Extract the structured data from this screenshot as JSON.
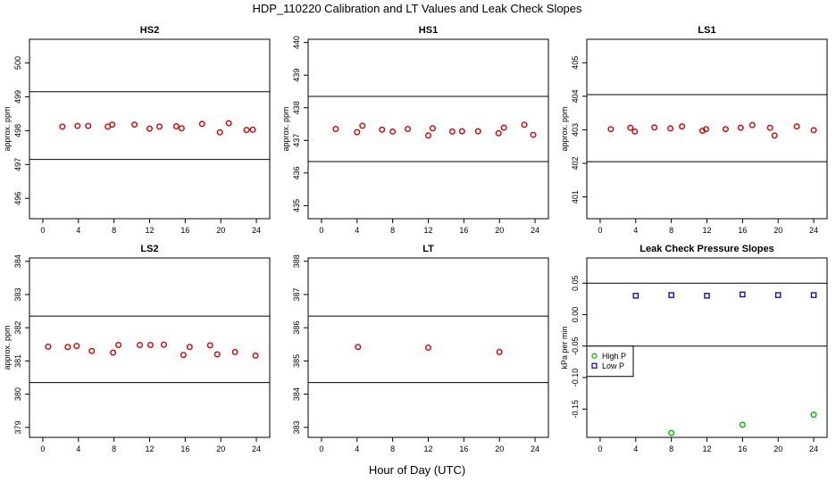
{
  "figure": {
    "title": "HDP_110220  Calibration and LT Values and Leak Check Slopes",
    "xlabel": "Hour of Day (UTC)"
  },
  "chart_data": [
    {
      "type": "scatter",
      "title": "HS2",
      "ylabel": "approx. ppm",
      "xlim": [
        -1.5,
        25.5
      ],
      "ylim": [
        495.4,
        500.7
      ],
      "xticks": [
        0,
        4,
        8,
        12,
        16,
        20,
        24
      ],
      "yticks": [
        496,
        497,
        498,
        499,
        500
      ],
      "hlines": [
        499.15,
        497.15
      ],
      "series": [
        {
          "color": "#dd0000",
          "marker": "circle",
          "x": [
            2.2,
            3.9,
            5.1,
            7.3,
            7.8,
            10.3,
            12.0,
            13.1,
            15.0,
            15.6,
            17.9,
            19.9,
            20.9,
            22.9,
            23.6
          ],
          "y": [
            498.12,
            498.14,
            498.14,
            498.12,
            498.18,
            498.18,
            498.06,
            498.12,
            498.13,
            498.07,
            498.2,
            497.95,
            498.22,
            498.02,
            498.03
          ]
        }
      ]
    },
    {
      "type": "scatter",
      "title": "HS1",
      "ylabel": "approx. ppm",
      "xlim": [
        -1.5,
        25.5
      ],
      "ylim": [
        434.6,
        440.1
      ],
      "xticks": [
        0,
        4,
        8,
        12,
        16,
        20,
        24
      ],
      "yticks": [
        435,
        436,
        437,
        438,
        439,
        440
      ],
      "hlines": [
        438.35,
        436.35
      ],
      "series": [
        {
          "color": "#dd0000",
          "marker": "circle",
          "x": [
            1.6,
            4.0,
            4.6,
            6.8,
            8.0,
            9.7,
            12.0,
            12.5,
            14.7,
            15.8,
            17.6,
            19.9,
            20.5,
            22.8,
            23.8
          ],
          "y": [
            437.35,
            437.25,
            437.45,
            437.33,
            437.27,
            437.35,
            437.15,
            437.37,
            437.27,
            437.28,
            437.28,
            437.22,
            437.39,
            437.48,
            437.17
          ]
        }
      ]
    },
    {
      "type": "scatter",
      "title": "LS1",
      "ylabel": "approx. ppm",
      "xlim": [
        -1.5,
        25.5
      ],
      "ylim": [
        400.35,
        405.7
      ],
      "xticks": [
        0,
        4,
        8,
        12,
        16,
        20,
        24
      ],
      "yticks": [
        401,
        402,
        403,
        404,
        405
      ],
      "hlines": [
        404.05,
        402.05
      ],
      "series": [
        {
          "color": "#dd0000",
          "marker": "circle",
          "x": [
            1.2,
            3.4,
            3.9,
            6.1,
            7.9,
            9.2,
            11.5,
            11.9,
            14.1,
            15.8,
            17.1,
            19.1,
            19.6,
            22.1,
            24.0
          ],
          "y": [
            403.02,
            403.06,
            402.95,
            403.07,
            403.04,
            403.1,
            402.97,
            403.02,
            403.02,
            403.06,
            403.14,
            403.06,
            402.83,
            403.1,
            402.99
          ]
        }
      ]
    },
    {
      "type": "scatter",
      "title": "LS2",
      "ylabel": "approx. ppm",
      "xlim": [
        -1.5,
        25.5
      ],
      "ylim": [
        378.7,
        384.1
      ],
      "xticks": [
        0,
        4,
        8,
        12,
        16,
        20,
        24
      ],
      "yticks": [
        379,
        380,
        381,
        382,
        383,
        384
      ],
      "hlines": [
        382.35,
        380.35
      ],
      "series": [
        {
          "color": "#dd0000",
          "marker": "circle",
          "x": [
            0.6,
            2.8,
            3.8,
            5.5,
            7.9,
            8.5,
            10.9,
            12.1,
            13.6,
            15.8,
            16.5,
            18.8,
            19.6,
            21.6,
            23.9
          ],
          "y": [
            381.43,
            381.42,
            381.45,
            381.3,
            381.25,
            381.48,
            381.48,
            381.48,
            381.49,
            381.18,
            381.42,
            381.47,
            381.2,
            381.27,
            381.16
          ]
        }
      ]
    },
    {
      "type": "scatter",
      "title": "LT",
      "ylabel": "",
      "xlim": [
        -1.5,
        25.5
      ],
      "ylim": [
        382.7,
        388.1
      ],
      "xticks": [
        0,
        4,
        8,
        12,
        16,
        20,
        24
      ],
      "yticks": [
        383,
        384,
        385,
        386,
        387,
        388
      ],
      "hlines": [
        386.35,
        384.35
      ],
      "series": [
        {
          "color": "#dd0000",
          "marker": "circle",
          "x": [
            4.1,
            12.0,
            20.0
          ],
          "y": [
            385.42,
            385.4,
            385.27
          ]
        }
      ]
    },
    {
      "type": "scatter",
      "title": "Leak Check Pressure Slopes",
      "ylabel": "kPa per min",
      "xlim": [
        -1.5,
        25.5
      ],
      "ylim": [
        -0.195,
        0.09
      ],
      "xticks": [
        0,
        4,
        8,
        12,
        16,
        20,
        24
      ],
      "yticks": [
        -0.15,
        -0.1,
        -0.05,
        0.0,
        0.05
      ],
      "ytick_labels": [
        "-0.15",
        "-0.10",
        "-0.05",
        "0.00",
        "0.05"
      ],
      "hlines": [
        0.05,
        -0.05
      ],
      "legend": {
        "position": "left",
        "entries": [
          "High P",
          "Low P"
        ]
      },
      "series": [
        {
          "name": "High P",
          "color": "#00bb00",
          "marker": "circle",
          "x": [
            8.0,
            16.0,
            24.0
          ],
          "y": [
            -0.188,
            -0.175,
            -0.159
          ]
        },
        {
          "name": "Low P",
          "color": "#0000cc",
          "marker": "square",
          "x": [
            4.0,
            8.0,
            12.0,
            16.0,
            20.0,
            24.0
          ],
          "y": [
            0.03,
            0.031,
            0.03,
            0.032,
            0.031,
            0.031
          ]
        }
      ]
    }
  ]
}
